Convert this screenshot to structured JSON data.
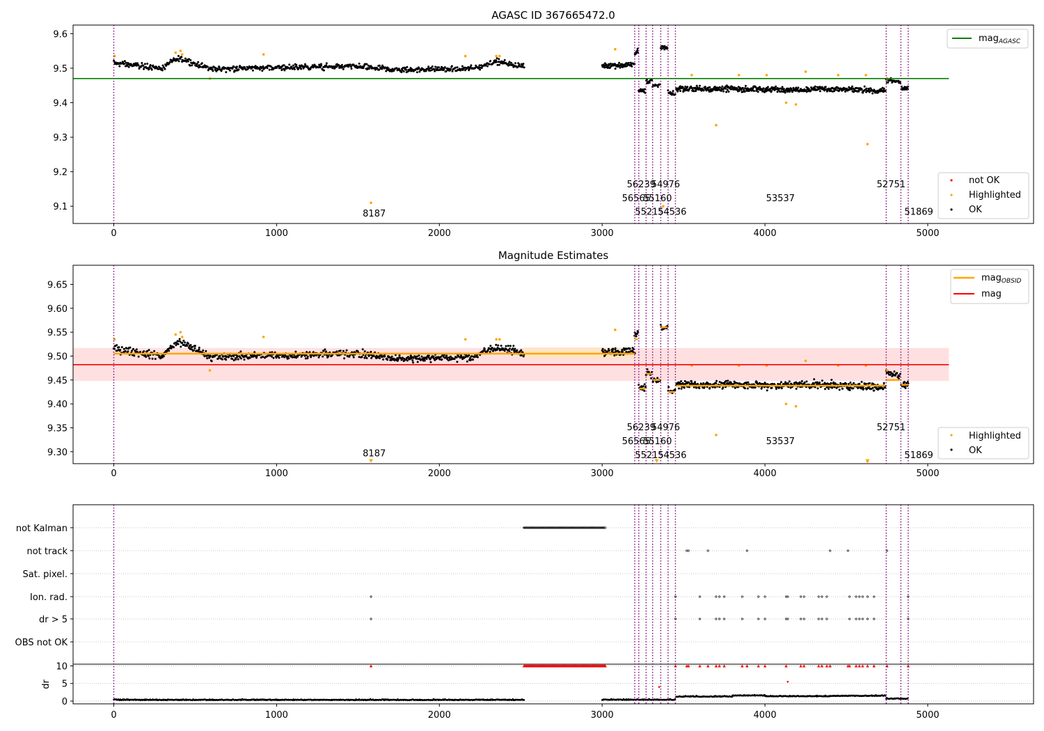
{
  "figure": {
    "x_ticks": [
      0,
      1000,
      2000,
      3000,
      4000,
      5000
    ],
    "vlines_x": [
      0,
      3200,
      3225,
      3270,
      3310,
      3360,
      3405,
      3450,
      4745,
      4835,
      4880
    ],
    "colors": {
      "ok": "#000000",
      "highlighted": "#ffa500",
      "not_ok": "#ff0000",
      "agasc_line": "#008000",
      "mag_line": "#ff0000",
      "obsid_line": "#ffa500",
      "vline": "#800080",
      "mag_band": "#ffe0e0",
      "obsid_band": "#ffe4c4"
    }
  },
  "chart_data": [
    {
      "type": "scatter",
      "title": "AGASC ID 367665472.0",
      "xlim": [
        -250,
        5650
      ],
      "ylim": [
        9.05,
        9.625
      ],
      "yticks": [
        "9.1",
        "9.2",
        "9.3",
        "9.4",
        "9.5",
        "9.6"
      ],
      "ytick_values": [
        9.1,
        9.2,
        9.3,
        9.4,
        9.5,
        9.6
      ],
      "reference_line": {
        "name": "mag_AGASC",
        "label_main": "mag",
        "label_sub": "AGASC",
        "y": 9.47,
        "x_range": [
          -250,
          5130
        ]
      },
      "legend_lines": [
        {
          "label_main": "mag",
          "label_sub": "AGASC"
        }
      ],
      "legend_markers": [
        "not OK",
        "Highlighted",
        "OK"
      ],
      "segments": [
        {
          "x0": 0,
          "x1": 2520,
          "levels": [
            [
              0,
              9.515
            ],
            [
              300,
              9.5
            ],
            [
              400,
              9.53
            ],
            [
              600,
              9.498
            ],
            [
              1000,
              9.502
            ],
            [
              1500,
              9.505
            ],
            [
              1750,
              9.495
            ],
            [
              2200,
              9.498
            ],
            [
              2350,
              9.52
            ],
            [
              2520,
              9.505
            ]
          ],
          "noise": 0.012,
          "n": 700
        },
        {
          "x0": 3000,
          "x1": 3200,
          "levels": [
            [
              3000,
              9.508
            ],
            [
              3200,
              9.51
            ]
          ],
          "noise": 0.012,
          "n": 70
        },
        {
          "x0": 3200,
          "x1": 3220,
          "levels": [
            [
              3200,
              9.545
            ],
            [
              3220,
              9.55
            ]
          ],
          "noise": 0.012,
          "n": 10
        },
        {
          "x0": 3225,
          "x1": 3265,
          "levels": [
            [
              3225,
              9.433
            ],
            [
              3265,
              9.435
            ]
          ],
          "noise": 0.01,
          "n": 14
        },
        {
          "x0": 3270,
          "x1": 3305,
          "levels": [
            [
              3270,
              9.462
            ],
            [
              3305,
              9.465
            ]
          ],
          "noise": 0.012,
          "n": 12
        },
        {
          "x0": 3310,
          "x1": 3355,
          "levels": [
            [
              3310,
              9.448
            ],
            [
              3355,
              9.45
            ]
          ],
          "noise": 0.01,
          "n": 12
        },
        {
          "x0": 3360,
          "x1": 3400,
          "levels": [
            [
              3360,
              9.56
            ],
            [
              3400,
              9.56
            ]
          ],
          "noise": 0.01,
          "n": 14
        },
        {
          "x0": 3405,
          "x1": 3448,
          "levels": [
            [
              3405,
              9.43
            ],
            [
              3448,
              9.425
            ]
          ],
          "noise": 0.01,
          "n": 12
        },
        {
          "x0": 3455,
          "x1": 4740,
          "levels": [
            [
              3455,
              9.44
            ],
            [
              3800,
              9.44
            ],
            [
              4000,
              9.438
            ],
            [
              4300,
              9.44
            ],
            [
              4740,
              9.435
            ]
          ],
          "noise": 0.012,
          "n": 480
        },
        {
          "x0": 4745,
          "x1": 4830,
          "levels": [
            [
              4745,
              9.465
            ],
            [
              4830,
              9.46
            ]
          ],
          "noise": 0.01,
          "n": 25
        },
        {
          "x0": 4838,
          "x1": 4880,
          "levels": [
            [
              4838,
              9.44
            ],
            [
              4880,
              9.44
            ]
          ],
          "noise": 0.01,
          "n": 20
        }
      ],
      "highlighted_points": [
        [
          5,
          9.535
        ],
        [
          380,
          9.545
        ],
        [
          410,
          9.55
        ],
        [
          420,
          9.54
        ],
        [
          590,
          9.47
        ],
        [
          920,
          9.54
        ],
        [
          1580,
          9.11
        ],
        [
          2160,
          9.535
        ],
        [
          2350,
          9.535
        ],
        [
          2370,
          9.535
        ],
        [
          3080,
          9.555
        ],
        [
          3375,
          9.1
        ],
        [
          3550,
          9.48
        ],
        [
          3700,
          9.335
        ],
        [
          3840,
          9.48
        ],
        [
          4010,
          9.48
        ],
        [
          4130,
          9.4
        ],
        [
          4190,
          9.395
        ],
        [
          4250,
          9.49
        ],
        [
          4450,
          9.48
        ],
        [
          4620,
          9.48
        ],
        [
          4630,
          9.28
        ],
        [
          4750,
          9.47
        ]
      ],
      "annotations": [
        {
          "text": "8187",
          "x": 1600,
          "y": 9.07
        },
        {
          "text": "56239",
          "x": 3240,
          "y": 9.155
        },
        {
          "text": "54976",
          "x": 3390,
          "y": 9.155
        },
        {
          "text": "56565",
          "x": 3210,
          "y": 9.115
        },
        {
          "text": "55160",
          "x": 3340,
          "y": 9.115
        },
        {
          "text": "55215",
          "x": 3290,
          "y": 9.075
        },
        {
          "text": "54536",
          "x": 3430,
          "y": 9.075
        },
        {
          "text": "53537",
          "x": 4095,
          "y": 9.115
        },
        {
          "text": "52751",
          "x": 4775,
          "y": 9.155
        },
        {
          "text": "51869",
          "x": 4945,
          "y": 9.075
        }
      ]
    },
    {
      "type": "scatter",
      "title": "Magnitude Estimates",
      "xlim": [
        -250,
        5650
      ],
      "ylim": [
        9.275,
        9.69
      ],
      "yticks": [
        "9.30",
        "9.35",
        "9.40",
        "9.45",
        "9.50",
        "9.55",
        "9.60",
        "9.65"
      ],
      "ytick_values": [
        9.3,
        9.35,
        9.4,
        9.45,
        9.5,
        9.55,
        9.6,
        9.65
      ],
      "mag": {
        "y": 9.482,
        "band": [
          9.448,
          9.517
        ],
        "x_range": [
          -250,
          5130
        ]
      },
      "obsid_means": [
        [
          0,
          2520,
          9.505
        ],
        [
          2520,
          3200,
          9.505
        ],
        [
          3200,
          3220,
          9.535
        ],
        [
          3225,
          3265,
          9.432
        ],
        [
          3270,
          3305,
          9.463
        ],
        [
          3310,
          3355,
          9.45
        ],
        [
          3360,
          3400,
          9.56
        ],
        [
          3405,
          3448,
          9.425
        ],
        [
          3455,
          4740,
          9.438
        ],
        [
          4745,
          4830,
          9.45
        ],
        [
          4838,
          4880,
          9.44
        ]
      ],
      "obsid_band": {
        "x0": 2520,
        "x1": 3200,
        "band": [
          9.495,
          9.518
        ]
      },
      "legend_lines": [
        {
          "label_main": "mag",
          "label_sub": "OBSID"
        },
        {
          "label_main": "mag",
          "label_sub": ""
        }
      ],
      "legend_markers": [
        "Highlighted",
        "OK"
      ],
      "arrow_points": [
        [
          1580,
          9.28
        ],
        [
          3335,
          9.28
        ],
        [
          4630,
          9.28
        ]
      ],
      "annotations": [
        {
          "text": "8187",
          "x": 1600,
          "y": 9.29
        },
        {
          "text": "56239",
          "x": 3240,
          "y": 9.345
        },
        {
          "text": "54976",
          "x": 3390,
          "y": 9.345
        },
        {
          "text": "56565",
          "x": 3210,
          "y": 9.316
        },
        {
          "text": "55160",
          "x": 3340,
          "y": 9.316
        },
        {
          "text": "55215",
          "x": 3290,
          "y": 9.287
        },
        {
          "text": "54536",
          "x": 3430,
          "y": 9.287
        },
        {
          "text": "53537",
          "x": 4095,
          "y": 9.316
        },
        {
          "text": "52751",
          "x": 4775,
          "y": 9.345
        },
        {
          "text": "51869",
          "x": 4945,
          "y": 9.287
        }
      ]
    },
    {
      "type": "scatter",
      "title": "",
      "xlim": [
        -250,
        5650
      ],
      "flag_labels": [
        "not Kalman",
        "not track",
        "Sat. pixel.",
        "Ion. rad.",
        "dr > 5",
        "OBS not OK"
      ],
      "flag_points": {
        "not Kalman": {
          "ranges": [
            [
              2520,
              3020
            ]
          ],
          "points": []
        },
        "not track": {
          "ranges": [],
          "points": [
            3520,
            3530,
            3650,
            3890,
            4400,
            4510,
            4750
          ]
        },
        "Sat. pixel.": {
          "ranges": [],
          "points": []
        },
        "Ion. rad.": {
          "ranges": [],
          "points": [
            1580,
            3450,
            3600,
            3700,
            3720,
            3750,
            3860,
            3960,
            4000,
            4130,
            4140,
            4220,
            4240,
            4330,
            4350,
            4380,
            4520,
            4560,
            4580,
            4600,
            4630,
            4670,
            4880
          ]
        },
        "dr > 5": {
          "ranges": [],
          "points": [
            1580,
            3450,
            3600,
            3700,
            3720,
            3750,
            3860,
            3960,
            4000,
            4130,
            4140,
            4220,
            4240,
            4330,
            4350,
            4380,
            4520,
            4560,
            4580,
            4600,
            4630,
            4670,
            4880
          ]
        },
        "OBS not OK": {
          "ranges": [],
          "points": []
        }
      },
      "dr": {
        "ylabel": "dr",
        "ylim": [
          -0.8,
          10.3
        ],
        "yticks": [
          "0",
          "5",
          "10"
        ],
        "ytick_values": [
          0,
          5,
          10
        ],
        "baseline_segments": [
          [
            0,
            2520,
            0.25
          ],
          [
            3000,
            3450,
            0.3
          ],
          [
            3455,
            3800,
            1.2
          ],
          [
            3800,
            4000,
            1.5
          ],
          [
            4000,
            4400,
            1.3
          ],
          [
            4400,
            4740,
            1.4
          ],
          [
            4745,
            4880,
            0.6
          ]
        ],
        "capped_ranges": [
          [
            2520,
            3020
          ]
        ],
        "capped_points": [
          1580,
          3450,
          3520,
          3530,
          3600,
          3650,
          3700,
          3720,
          3750,
          3860,
          3890,
          3960,
          4000,
          4130,
          4220,
          4240,
          4330,
          4350,
          4380,
          4400,
          4510,
          4520,
          4560,
          4580,
          4600,
          4630,
          4670,
          4750,
          4880
        ],
        "extra_points": [
          [
            4140,
            5.5
          ],
          [
            3350,
            4
          ]
        ]
      }
    }
  ]
}
